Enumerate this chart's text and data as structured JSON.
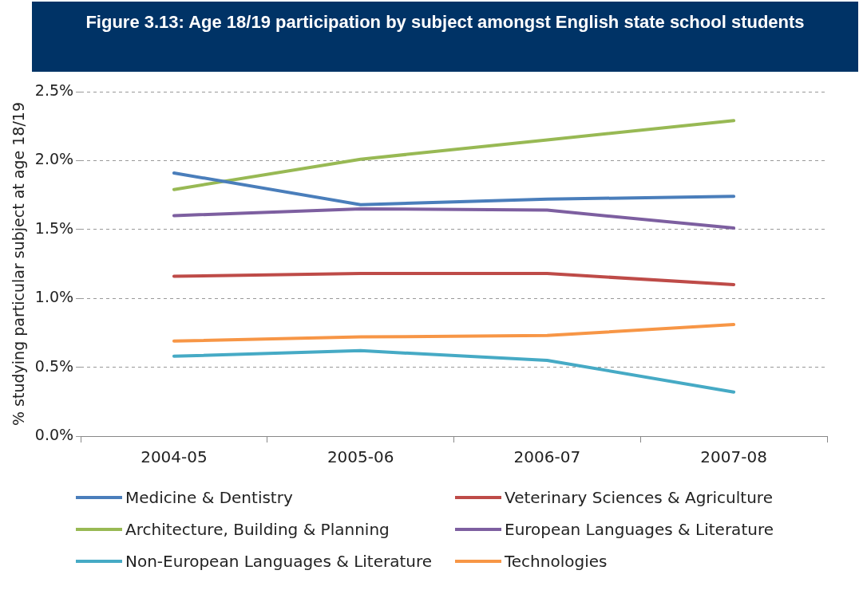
{
  "chart_data": {
    "type": "line",
    "title": "Figure 3.13: Age 18/19 participation by subject amongst English state school students",
    "ylabel": "% studying particular subject at age 18/19",
    "categories": [
      "2004-05",
      "2005-06",
      "2006-07",
      "2007-08"
    ],
    "series": [
      {
        "name": "Medicine & Dentistry",
        "color": "#4a7ebb",
        "values": [
          1.91,
          1.68,
          1.72,
          1.74
        ]
      },
      {
        "name": "Veterinary Sciences & Agriculture",
        "color": "#be4b48",
        "values": [
          1.16,
          1.18,
          1.18,
          1.1
        ]
      },
      {
        "name": "Architecture, Building & Planning",
        "color": "#98b954",
        "values": [
          1.79,
          2.01,
          2.15,
          2.29
        ]
      },
      {
        "name": "European Languages & Literature",
        "color": "#7d5fa0",
        "values": [
          1.6,
          1.65,
          1.64,
          1.51
        ]
      },
      {
        "name": "Non-European Languages & Literature",
        "color": "#46aac5",
        "values": [
          0.58,
          0.62,
          0.55,
          0.32
        ]
      },
      {
        "name": "Technologies",
        "color": "#f79646",
        "values": [
          0.69,
          0.72,
          0.73,
          0.81
        ]
      }
    ],
    "ylim": [
      0,
      2.5
    ],
    "yticks": [
      {
        "value": 0,
        "label": "0.0%"
      },
      {
        "value": 0.5,
        "label": "0.5%"
      },
      {
        "value": 1,
        "label": "1.0%"
      },
      {
        "value": 1.5,
        "label": "1.5%"
      },
      {
        "value": 2,
        "label": "2.0%"
      },
      {
        "value": 2.5,
        "label": "2.5%"
      }
    ],
    "grid": "y",
    "legend": "bottom",
    "marker": "none",
    "line_style": "solid"
  }
}
